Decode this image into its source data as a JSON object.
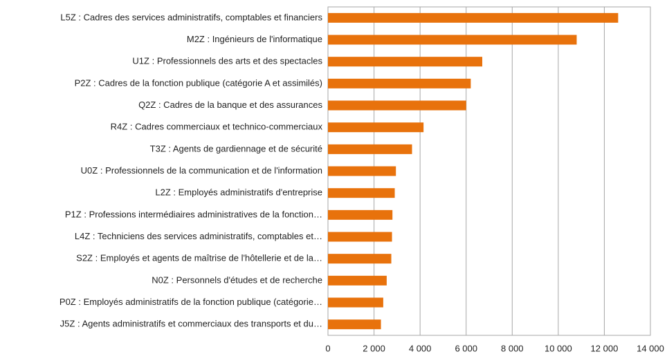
{
  "chart_data": {
    "type": "bar",
    "orientation": "horizontal",
    "categories": [
      "L5Z : Cadres des services administratifs, comptables et financiers",
      "M2Z : Ingénieurs de l'informatique",
      "U1Z : Professionnels des arts et des spectacles",
      "P2Z : Cadres de la fonction publique (catégorie A et assimilés)",
      "Q2Z : Cadres de la banque et des assurances",
      "R4Z : Cadres commerciaux et technico-commerciaux",
      "T3Z : Agents de gardiennage et de sécurité",
      "U0Z : Professionnels de la communication et de l'information",
      "L2Z : Employés administratifs d'entreprise",
      "P1Z : Professions intermédiaires administratives de la fonction…",
      "L4Z : Techniciens des services administratifs, comptables et…",
      "S2Z : Employés et agents de maîtrise de l'hôtellerie et de la…",
      "N0Z : Personnels d'études et de recherche",
      "P0Z : Employés administratifs de la fonction publique (catégorie…",
      "J5Z : Agents administratifs et commerciaux des transports et du…"
    ],
    "values": [
      12600,
      10800,
      6700,
      6200,
      6000,
      4150,
      3650,
      2950,
      2900,
      2800,
      2780,
      2750,
      2550,
      2400,
      2300
    ],
    "color": "#e8720c",
    "xlim": [
      0,
      14000
    ],
    "xticks": [
      0,
      {
        "value": 2000,
        "label": "2 000"
      },
      {
        "value": 4000,
        "label": "4 000"
      },
      {
        "value": 6000,
        "label": "6 000"
      },
      {
        "value": 8000,
        "label": "8 000"
      },
      {
        "value": 10000,
        "label": "10 000"
      },
      {
        "value": 12000,
        "label": "12 000"
      },
      {
        "value": 14000,
        "label": "14 000"
      }
    ],
    "grid": true
  }
}
